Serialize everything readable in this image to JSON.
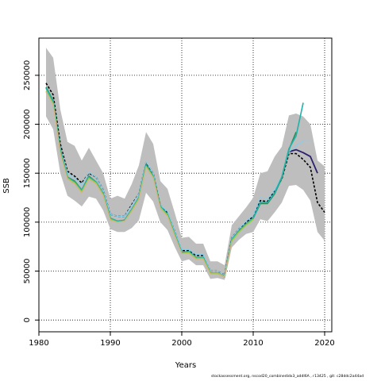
{
  "chart_data": {
    "type": "line",
    "xlabel": "Years",
    "ylabel": "SSB",
    "xlim": [
      1980,
      2021
    ],
    "ylim": [
      -12000,
      288000
    ],
    "xticks": [
      1980,
      1990,
      2000,
      2010,
      2020
    ],
    "yticks": [
      0,
      50000,
      100000,
      150000,
      200000,
      250000
    ],
    "grid": true,
    "grid_style": "dotted",
    "x": [
      1981,
      1982,
      1983,
      1984,
      1985,
      1986,
      1987,
      1988,
      1989,
      1990,
      1991,
      1992,
      1993,
      1994,
      1995,
      1996,
      1997,
      1998,
      1999,
      2000,
      2001,
      2002,
      2003,
      2004,
      2005,
      2006,
      2007,
      2008,
      2009,
      2010,
      2011,
      2012,
      2013,
      2014,
      2015,
      2016,
      2017,
      2018,
      2019,
      2020
    ],
    "confidence_band": {
      "color": "#bebebe",
      "upper": [
        278000,
        268000,
        215000,
        182000,
        178000,
        163000,
        176000,
        163000,
        150000,
        124000,
        127000,
        124000,
        139000,
        158000,
        192000,
        180000,
        142000,
        134000,
        110000,
        84000,
        85000,
        78000,
        78000,
        60000,
        60000,
        56000,
        97000,
        106000,
        115000,
        125000,
        150000,
        152000,
        167000,
        177000,
        209000,
        211000,
        208000,
        200000,
        163000,
        157000
      ],
      "lower": [
        208000,
        195000,
        150000,
        127000,
        122000,
        116000,
        126000,
        124000,
        112000,
        93000,
        90000,
        90000,
        94000,
        102000,
        130000,
        121000,
        100000,
        92000,
        75000,
        60000,
        62000,
        56000,
        56000,
        42000,
        43000,
        41000,
        74000,
        82000,
        88000,
        90000,
        103000,
        101000,
        110000,
        120000,
        137000,
        138000,
        133000,
        122000,
        90000,
        81000
      ]
    },
    "series": [
      {
        "color": "#000000",
        "style": "dashed",
        "width": 1.6,
        "values": [
          242000,
          230000,
          180000,
          152000,
          147000,
          140000,
          150000,
          146000,
          133000,
          108000,
          106000,
          106000,
          118000,
          129000,
          161000,
          150000,
          117000,
          110000,
          91000,
          71000,
          71000,
          66000,
          66000,
          50000,
          50000,
          46000,
          84000,
          93000,
          100000,
          106000,
          122000,
          121000,
          132000,
          144000,
          170000,
          170000,
          164000,
          156000,
          120000,
          110000
        ]
      },
      {
        "color": "#2b1f6e",
        "style": "solid",
        "width": 1.8,
        "values": [
          null,
          null,
          null,
          null,
          null,
          null,
          null,
          null,
          null,
          null,
          null,
          null,
          null,
          null,
          null,
          null,
          null,
          null,
          null,
          null,
          null,
          null,
          null,
          null,
          null,
          null,
          null,
          null,
          null,
          null,
          null,
          null,
          null,
          null,
          172000,
          174000,
          171000,
          167000,
          150000,
          null
        ]
      },
      {
        "color": "#87ceeb",
        "style": "solid",
        "width": 1.2,
        "values": [
          236000,
          225000,
          176000,
          150000,
          145000,
          138000,
          151000,
          146000,
          133000,
          108000,
          106000,
          106000,
          117000,
          129000,
          162000,
          150000,
          117000,
          111000,
          91000,
          72000,
          72000,
          67000,
          67000,
          50000,
          50000,
          46000,
          84000,
          93000,
          101000,
          107000,
          125000,
          124000,
          133000,
          146000,
          172000,
          178000,
          183000,
          183000,
          null,
          null
        ]
      },
      {
        "color": "#2e8b57",
        "style": "solid",
        "width": 1.6,
        "values": [
          238000,
          224000,
          174000,
          146000,
          142000,
          133000,
          147000,
          141000,
          129000,
          104000,
          101000,
          102000,
          113000,
          125000,
          159000,
          147000,
          116000,
          108000,
          88000,
          69000,
          70000,
          64000,
          64000,
          48000,
          48000,
          44000,
          82000,
          91000,
          98000,
          104000,
          119000,
          119000,
          129000,
          145000,
          174000,
          192000,
          null,
          null,
          null,
          null
        ]
      },
      {
        "color": "#20b2aa",
        "style": "solid",
        "width": 1.6,
        "values": [
          237000,
          223000,
          173000,
          146000,
          141000,
          133000,
          146000,
          141000,
          129000,
          104000,
          101000,
          102000,
          113000,
          125000,
          158000,
          147000,
          116000,
          108000,
          88000,
          69000,
          70000,
          64000,
          64000,
          48000,
          48000,
          44000,
          82000,
          91000,
          98000,
          104000,
          120000,
          120000,
          130000,
          146000,
          175000,
          188000,
          222000,
          null,
          null,
          null
        ]
      },
      {
        "color": "#9acd32",
        "style": "solid",
        "width": 1.4,
        "values": [
          234000,
          221000,
          171000,
          145000,
          140000,
          131000,
          145000,
          140000,
          128000,
          103000,
          100000,
          101000,
          112000,
          124000,
          157000,
          146000,
          115000,
          107000,
          87000,
          68000,
          69000,
          63000,
          63000,
          48000,
          48000,
          44000,
          81000,
          90000,
          97000,
          103000,
          null,
          null,
          null,
          null,
          null,
          null,
          null,
          null,
          null,
          null
        ]
      },
      {
        "color": "#d2b48c",
        "style": "solid",
        "width": 1.2,
        "values": [
          233000,
          220000,
          170000,
          144000,
          139000,
          130000,
          144000,
          139000,
          127000,
          102000,
          100000,
          101000,
          111000,
          123000,
          156000,
          145000,
          114000,
          106000,
          86000,
          68000,
          68000,
          62000,
          62000,
          47000,
          47000,
          44000,
          80000,
          null,
          null,
          null,
          null,
          null,
          null,
          null,
          null,
          null,
          null,
          null,
          null,
          null
        ]
      }
    ]
  },
  "footer": "stockassessment.org, nscod20_combinedidx3_addI6A , r13425 , git: c28ddc2a44ad"
}
